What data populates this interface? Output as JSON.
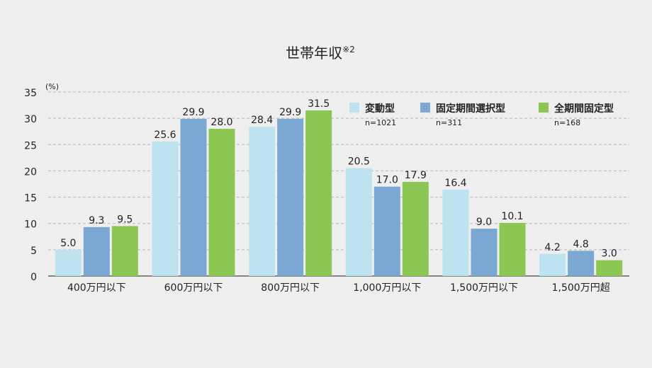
{
  "chart_data": {
    "type": "bar",
    "title": "世帯年収",
    "title_note": "※2",
    "ylabel": "(%)",
    "xlabel": "",
    "ylim": [
      0,
      35
    ],
    "yticks": [
      0,
      5,
      10,
      15,
      20,
      25,
      30,
      35
    ],
    "grid": true,
    "legend_position": "top-right",
    "categories": [
      "400万円以下",
      "600万円以下",
      "800万円以下",
      "1,000万円以下",
      "1,500万円以下",
      "1,500万円超"
    ],
    "series": [
      {
        "name": "変動型",
        "n": "n=1021",
        "color": "#bde3f0",
        "values": [
          5.0,
          25.6,
          28.4,
          20.5,
          16.4,
          4.2
        ]
      },
      {
        "name": "固定期間選択型",
        "n": "n=311",
        "color": "#7aa8d2",
        "values": [
          9.3,
          29.9,
          29.9,
          17.0,
          9.0,
          4.8
        ]
      },
      {
        "name": "全期間固定型",
        "n": "n=168",
        "color": "#8cc653",
        "values": [
          9.5,
          28.0,
          31.5,
          17.9,
          10.1,
          3.0
        ]
      }
    ]
  }
}
